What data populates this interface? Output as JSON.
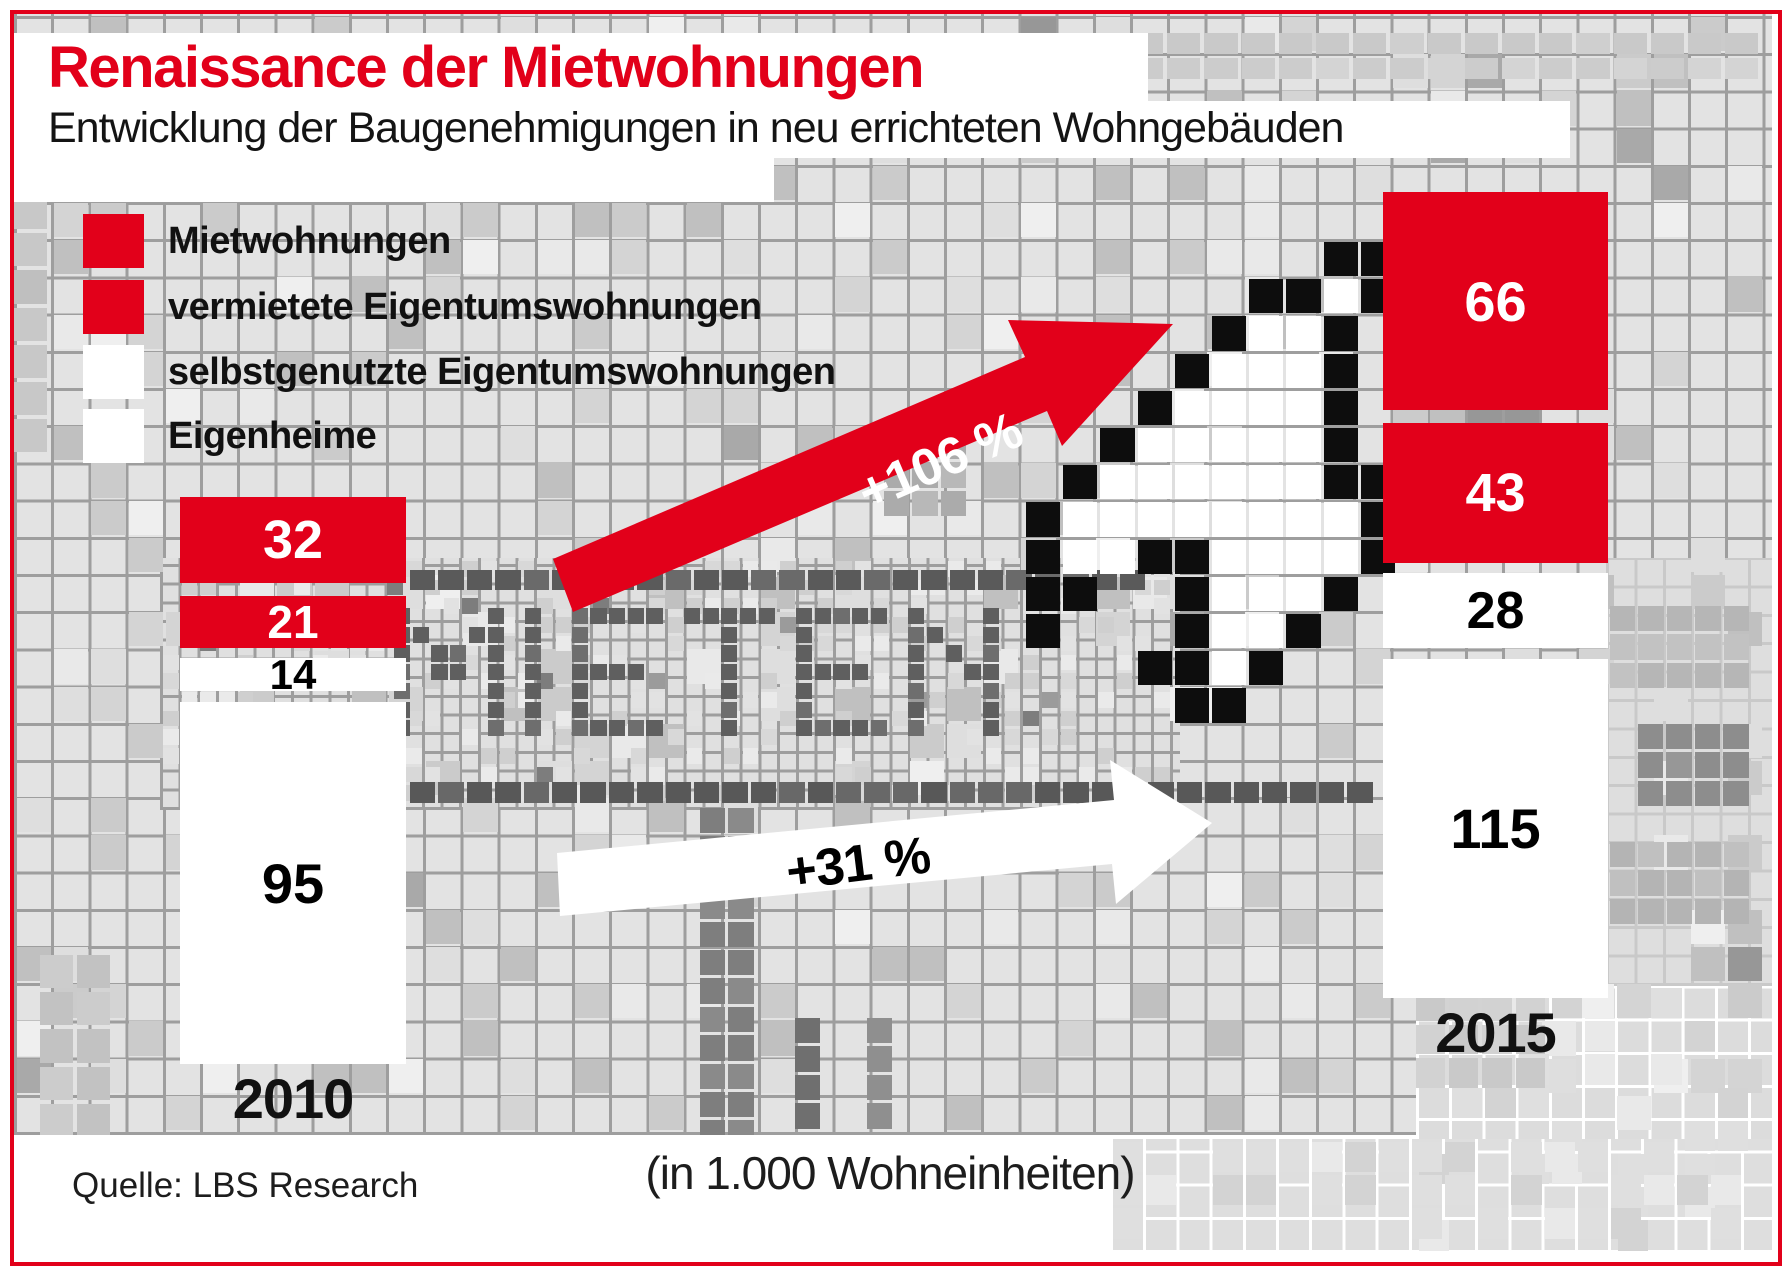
{
  "header": {
    "title": "Renaissance der Mietwohnungen",
    "subtitle": "Entwicklung der Baugenehmigungen in neu errichteten Wohngebäuden"
  },
  "legend": {
    "items": [
      {
        "label": "Mietwohnungen",
        "swatch": "#e2001a"
      },
      {
        "label": "vermietete Eigentumswohnungen",
        "swatch": "#e2001a"
      },
      {
        "label": "selbstgenutzte Eigentumswohnungen",
        "swatch": "#ffffff"
      },
      {
        "label": "Eigenheime",
        "swatch": "#ffffff"
      }
    ]
  },
  "chart_data": {
    "type": "bar",
    "stacked": true,
    "title": "Renaissance der Mietwohnungen",
    "subtitle": "Entwicklung der Baugenehmigungen in neu errichteten Wohngebäuden",
    "categories": [
      "2010",
      "2015"
    ],
    "series": [
      {
        "name": "Mietwohnungen",
        "values": [
          32,
          66
        ],
        "color": "#e2001a",
        "text_color": "#ffffff"
      },
      {
        "name": "vermietete Eigentumswohnungen",
        "values": [
          21,
          43
        ],
        "color": "#e2001a",
        "text_color": "#ffffff"
      },
      {
        "name": "selbstgenutzte Eigentumswohnungen",
        "values": [
          14,
          28
        ],
        "color": "#ffffff",
        "text_color": "#000000"
      },
      {
        "name": "Eigenheime",
        "values": [
          95,
          115
        ],
        "color": "#ffffff",
        "text_color": "#000000"
      }
    ],
    "totals": [
      162,
      252
    ],
    "annotations": [
      {
        "text": "+106 %",
        "text_color": "#ffffff",
        "arrow_color": "#e2001a",
        "applies_to": "Mietwohnungen + vermietete Eigentumswohnungen"
      },
      {
        "text": "+31 %",
        "text_color": "#000000",
        "arrow_color": "#ffffff",
        "applies_to": "selbstgenutzte Eigentumswohnungen + Eigenheime"
      }
    ],
    "unit_note": "(in 1.000 Wohneinheiten)",
    "legend_position": "top-left",
    "grid": false
  },
  "background": {
    "word": "MIETEN",
    "mosaic_base": "#e3e3e3",
    "grout": "#9e9e9e",
    "accent_red": "#e2001a",
    "cursor_icon": "pixel-mouse-cursor"
  },
  "footer": {
    "source": "Quelle: LBS Research"
  }
}
